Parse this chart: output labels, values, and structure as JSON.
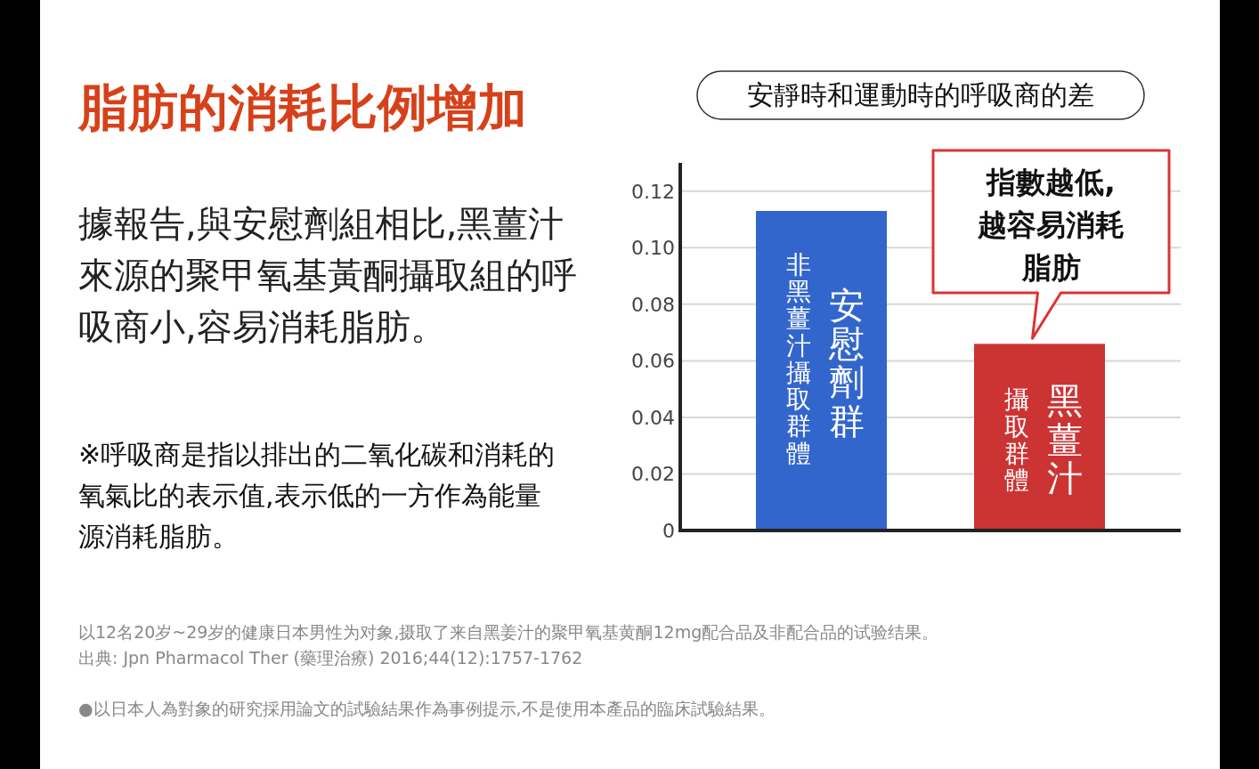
{
  "chart_data": {
    "type": "bar",
    "title": "脂肪的消耗比例增加",
    "subtitle": "安靜時和運動時的呼吸商的差",
    "categories": [
      "安慰劑群",
      "黑薑汁"
    ],
    "values": [
      0.113,
      0.066
    ],
    "colors": [
      "#3366cc",
      "#cc3333"
    ],
    "ylim": [
      0,
      0.13
    ],
    "yticks": [
      0,
      0.02,
      0.04,
      0.06,
      0.08,
      {
        "value": 0.1,
        "label": "0.10"
      },
      0.12
    ],
    "grid": "y",
    "annotations": [
      "據報告,與安慰劑組相比,黑薑汁來源的聚甲氧基黃酮攝取組的呼吸商小,容易消耗脂肪。",
      "※呼吸商是指以排出的二氧化碳和消耗的氧氣比的表示值,表示低的一方作為能量源消耗脂肪。",
      "以12名20岁~29岁的健康日本男性为对象,摄取了来自黑姜汁的聚甲氧基黄酮12mg配合品及非配合品的试验结果。",
      "出典: Jpn Pharmacol Ther (藥理治療) 2016;44(12):1757-1762",
      "●以日本人為對象的研究採用論文的試驗結果作為事例提示,不是使用本產品的臨床試驗結果。",
      "非黑薑汁攝取群體",
      "攝取群體",
      {
        "text": "指數越低,越容易消耗脂肪",
        "x": "黑薑汁",
        "y": 0.066
      }
    ]
  }
}
